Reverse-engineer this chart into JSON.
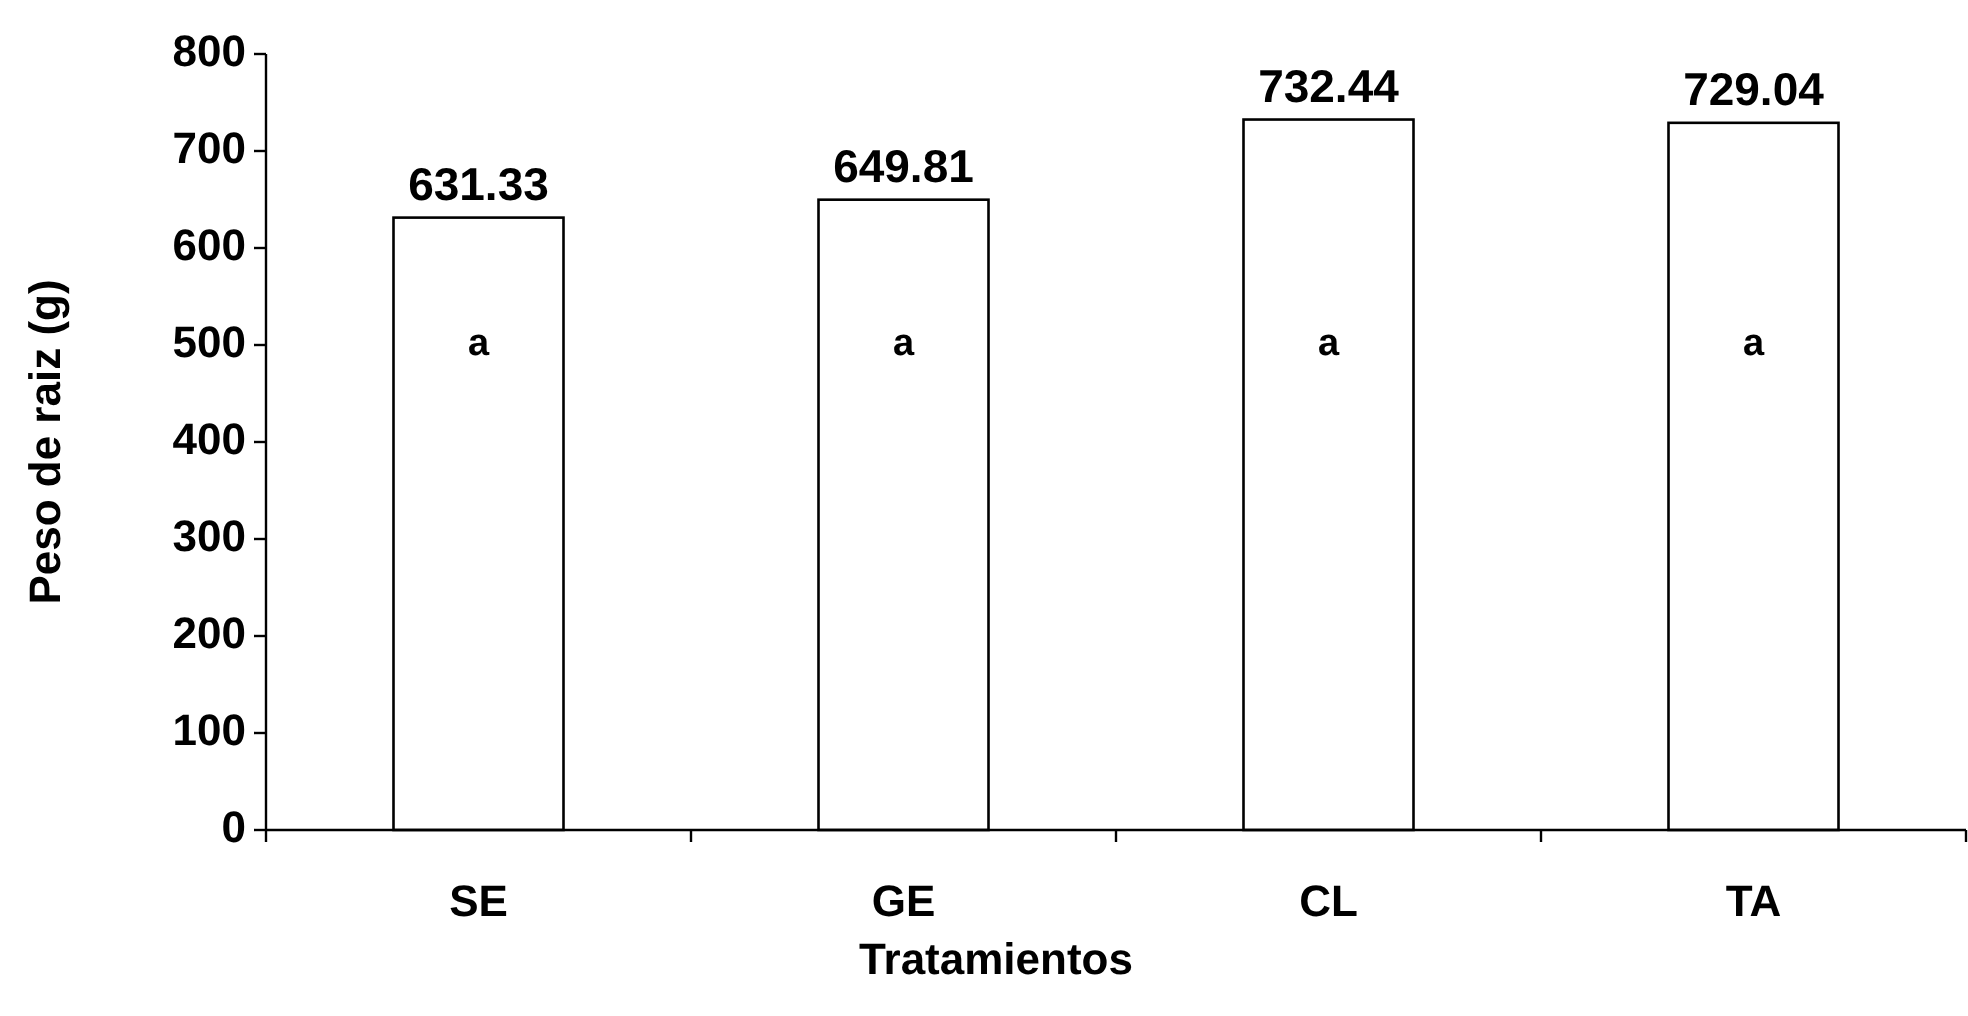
{
  "chart_data": {
    "type": "bar",
    "xlabel": "Tratamientos",
    "ylabel": "Peso de raiz (g)",
    "categories": [
      "SE",
      "GE",
      "CL",
      "TA"
    ],
    "values": [
      631.33,
      649.81,
      732.44,
      729.04
    ],
    "color": "#ffffff",
    "ylim": [
      0,
      800
    ],
    "yticks": [
      0,
      100,
      200,
      300,
      400,
      500,
      600,
      700,
      800
    ],
    "grid": false,
    "data_labels": true,
    "annotations": [
      "a",
      "a",
      "a",
      "a"
    ]
  }
}
